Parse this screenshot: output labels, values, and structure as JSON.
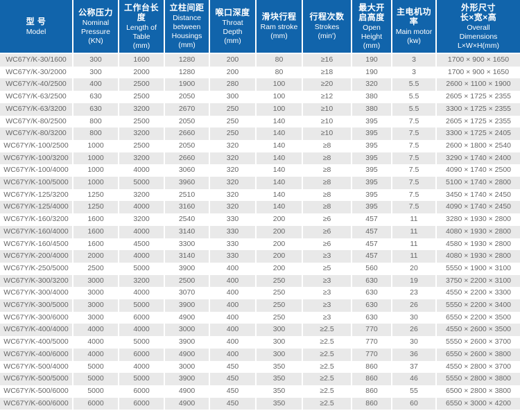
{
  "colors": {
    "header_bg": "#1164ab",
    "header_text": "#ffffff",
    "row_stripe": "#e9e9e9",
    "row_text": "#666666"
  },
  "table": {
    "columns": [
      {
        "id": "model",
        "cn": [
          "型 号"
        ],
        "en": [
          "Model"
        ]
      },
      {
        "id": "nominal-pressure",
        "cn": [
          "公称压力"
        ],
        "en": [
          "Nominal",
          "Pressure",
          "(KN)"
        ]
      },
      {
        "id": "table-length",
        "cn": [
          "工作台长度"
        ],
        "en": [
          "Length of",
          "Table",
          "(mm)"
        ]
      },
      {
        "id": "housing-distance",
        "cn": [
          "立柱间距"
        ],
        "en": [
          "Distance",
          "between",
          "Housings",
          "(mm)"
        ]
      },
      {
        "id": "throat-depth",
        "cn": [
          "喉口深度"
        ],
        "en": [
          "Throat",
          "Depth",
          "(mm)"
        ]
      },
      {
        "id": "ram-stroke",
        "cn": [
          "滑块行程"
        ],
        "en": [
          "Ram stroke",
          "(mm)"
        ]
      },
      {
        "id": "strokes",
        "cn": [
          "行程次数"
        ],
        "en": [
          "Strokes",
          "(min')"
        ]
      },
      {
        "id": "open-height",
        "cn": [
          "最大开",
          "启高度"
        ],
        "en": [
          "Open",
          "Height",
          "(mm)"
        ]
      },
      {
        "id": "main-motor",
        "cn": [
          "主电机功率"
        ],
        "en": [
          "Main motor",
          "(kw)"
        ]
      },
      {
        "id": "overall-dimensions",
        "cn": [
          "外形尺寸",
          "长×宽×高"
        ],
        "en": [
          "Overall",
          "Dimensions",
          "L×W×H(mm)"
        ]
      }
    ],
    "rows": [
      [
        "WC67Y/K-30/1600",
        "300",
        "1600",
        "1280",
        "200",
        "80",
        "≥16",
        "190",
        "3",
        "1700 × 900 × 1650"
      ],
      [
        "WC67Y/K-30/2000",
        "300",
        "2000",
        "1280",
        "200",
        "80",
        "≥18",
        "190",
        "3",
        "1700 × 900 × 1650"
      ],
      [
        "WC67Y/K-40/2500",
        "400",
        "2500",
        "1900",
        "280",
        "100",
        "≥20",
        "320",
        "5.5",
        "2600 × 1100 × 1900"
      ],
      [
        "WC67Y/K-63/2500",
        "630",
        "2500",
        "2050",
        "300",
        "100",
        "≥12",
        "380",
        "5.5",
        "2605 × 1725 × 2355"
      ],
      [
        "WC67Y/K-63/3200",
        "630",
        "3200",
        "2670",
        "250",
        "100",
        "≥10",
        "380",
        "5.5",
        "3300 × 1725 × 2355"
      ],
      [
        "WC67Y/K-80/2500",
        "800",
        "2500",
        "2050",
        "250",
        "140",
        "≥10",
        "395",
        "7.5",
        "2605 × 1725 × 2355"
      ],
      [
        "WC67Y/K-80/3200",
        "800",
        "3200",
        "2660",
        "250",
        "140",
        "≥10",
        "395",
        "7.5",
        "3300 × 1725 × 2405"
      ],
      [
        "WC67Y/K-100/2500",
        "1000",
        "2500",
        "2050",
        "320",
        "140",
        "≥8",
        "395",
        "7.5",
        "2600 × 1800 × 2540"
      ],
      [
        "WC67Y/K-100/3200",
        "1000",
        "3200",
        "2660",
        "320",
        "140",
        "≥8",
        "395",
        "7.5",
        "3290 × 1740 × 2400"
      ],
      [
        "WC67Y/K-100/4000",
        "1000",
        "4000",
        "3060",
        "320",
        "140",
        "≥8",
        "395",
        "7.5",
        "4090 × 1740 × 2500"
      ],
      [
        "WC67Y/K-100/5000",
        "1000",
        "5000",
        "3960",
        "320",
        "140",
        "≥8",
        "395",
        "7.5",
        "5100 × 1740 × 2800"
      ],
      [
        "WC67Y/K-125/3200",
        "1250",
        "3200",
        "2510",
        "320",
        "140",
        "≥8",
        "395",
        "7.5",
        "3450 × 1740 × 2450"
      ],
      [
        "WC67Y/K-125/4000",
        "1250",
        "4000",
        "3160",
        "320",
        "140",
        "≥8",
        "395",
        "7.5",
        "4090 × 1740 × 2450"
      ],
      [
        "WC67Y/K-160/3200",
        "1600",
        "3200",
        "2540",
        "330",
        "200",
        "≥6",
        "457",
        "11",
        "3280 × 1930 × 2800"
      ],
      [
        "WC67Y/K-160/4000",
        "1600",
        "4000",
        "3140",
        "330",
        "200",
        "≥6",
        "457",
        "11",
        "4080 × 1930 × 2800"
      ],
      [
        "WC67Y/K-160/4500",
        "1600",
        "4500",
        "3300",
        "330",
        "200",
        "≥6",
        "457",
        "11",
        "4580 × 1930 × 2800"
      ],
      [
        "WC67Y/K-200/4000",
        "2000",
        "4000",
        "3140",
        "330",
        "200",
        "≥3",
        "457",
        "11",
        "4080 × 1930 × 2800"
      ],
      [
        "WC67Y/K-250/5000",
        "2500",
        "5000",
        "3900",
        "400",
        "200",
        "≥5",
        "560",
        "20",
        "5550 × 1900 × 3100"
      ],
      [
        "WC67Y/K-300/3200",
        "3000",
        "3200",
        "2500",
        "400",
        "250",
        "≥3",
        "630",
        "19",
        "3750 × 2200 × 3100"
      ],
      [
        "WC67Y/K-300/4000",
        "3000",
        "4000",
        "3070",
        "400",
        "250",
        "≥3",
        "630",
        "23",
        "4550 × 2200 × 3300"
      ],
      [
        "WC67Y/K-300/5000",
        "3000",
        "5000",
        "3900",
        "400",
        "250",
        "≥3",
        "630",
        "26",
        "5550 × 2200 × 3400"
      ],
      [
        "WC67Y/K-300/6000",
        "3000",
        "6000",
        "4900",
        "400",
        "250",
        "≥3",
        "630",
        "30",
        "6550 × 2200 × 3500"
      ],
      [
        "WC67Y/K-400/4000",
        "4000",
        "4000",
        "3000",
        "400",
        "300",
        "≥2.5",
        "770",
        "26",
        "4550 × 2600 × 3500"
      ],
      [
        "WC67Y/K-400/5000",
        "4000",
        "5000",
        "3900",
        "400",
        "300",
        "≥2.5",
        "770",
        "30",
        "5550 × 2600 × 3700"
      ],
      [
        "WC67Y/K-400/6000",
        "4000",
        "6000",
        "4900",
        "400",
        "300",
        "≥2.5",
        "770",
        "36",
        "6550 × 2600 × 3800"
      ],
      [
        "WC67Y/K-500/4000",
        "5000",
        "4000",
        "3000",
        "450",
        "350",
        "≥2.5",
        "860",
        "37",
        "4550 × 2800 × 3700"
      ],
      [
        "WC67Y/K-500/5000",
        "5000",
        "5000",
        "3900",
        "450",
        "350",
        "≥2.5",
        "860",
        "46",
        "5550 × 2800 × 3800"
      ],
      [
        "WC67Y/K-500/6000",
        "5000",
        "6000",
        "4900",
        "450",
        "350",
        "≥2.5",
        "860",
        "55",
        "6500 × 2800 × 3800"
      ],
      [
        "WC67Y/K-600/6000",
        "6000",
        "6000",
        "4900",
        "450",
        "350",
        "≥2.5",
        "860",
        "60",
        "6550 × 3000 × 4200"
      ]
    ]
  }
}
